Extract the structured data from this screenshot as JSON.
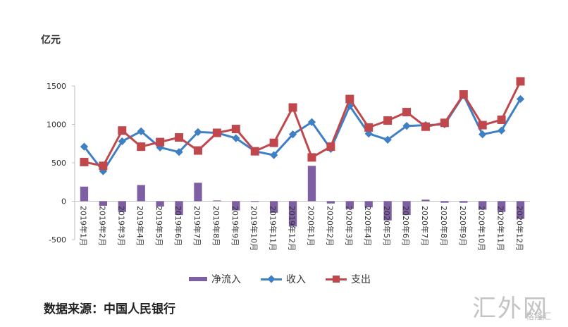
{
  "unit_label": "亿元",
  "source": "数据来源：中国人民银行",
  "watermark": {
    "text": "汇外网",
    "sub": "格隆汇"
  },
  "legend": {
    "net": "净流入",
    "income": "收入",
    "expense": "支出"
  },
  "colors": {
    "net": "#7f5fa3",
    "income": "#3f7fc4",
    "expense": "#c0484d"
  },
  "chart_data": {
    "type": "bar+line",
    "ylim": [
      -500,
      1500
    ],
    "yticks": [
      -500,
      0,
      500,
      1000,
      1500
    ],
    "categories": [
      "2019年1月",
      "2019年2月",
      "2019年3月",
      "2019年4月",
      "2019年5月",
      "2019年6月",
      "2019年7月",
      "2019年8月",
      "2019年9月",
      "2019年10月",
      "2019年11月",
      "2019年12月",
      "2020年1月",
      "2020年2月",
      "2020年3月",
      "2020年4月",
      "2020年5月",
      "2020年6月",
      "2020年7月",
      "2020年8月",
      "2020年9月",
      "2020年10月",
      "2020年11月",
      "2020年12月"
    ],
    "series": [
      {
        "name": "净流入",
        "kind": "bar",
        "values": [
          190,
          -60,
          -140,
          210,
          -70,
          -180,
          240,
          10,
          -120,
          0,
          -150,
          -330,
          460,
          -30,
          -100,
          -80,
          -250,
          -180,
          20,
          -20,
          -20,
          -110,
          -140,
          -230
        ]
      },
      {
        "name": "收入",
        "kind": "line",
        "marker": "diamond",
        "values": [
          710,
          390,
          780,
          910,
          700,
          640,
          900,
          890,
          820,
          650,
          600,
          870,
          1030,
          680,
          1240,
          880,
          800,
          980,
          990,
          1000,
          1380,
          870,
          920,
          1330
        ]
      },
      {
        "name": "支出",
        "kind": "line",
        "marker": "square",
        "values": [
          510,
          460,
          920,
          710,
          770,
          830,
          660,
          890,
          940,
          650,
          760,
          1220,
          570,
          710,
          1330,
          960,
          1050,
          1160,
          970,
          1020,
          1390,
          990,
          1060,
          1560
        ]
      }
    ]
  }
}
